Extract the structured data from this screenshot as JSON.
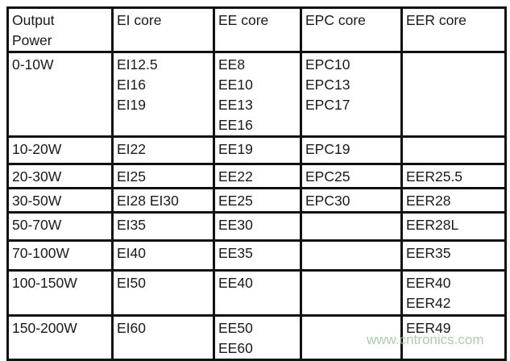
{
  "table": {
    "headers": [
      [
        "Output",
        "Power"
      ],
      [
        "EI core"
      ],
      [
        "EE core"
      ],
      [
        "EPC core"
      ],
      [
        "EER core"
      ]
    ],
    "rows": [
      [
        [
          "0-10W"
        ],
        [
          "EI12.5",
          "EI16",
          "EI19"
        ],
        [
          "EE8",
          "EE10",
          "EE13",
          "EE16"
        ],
        [
          "EPC10",
          "EPC13",
          "EPC17"
        ],
        []
      ],
      [
        [
          "10-20W"
        ],
        [
          "EI22"
        ],
        [
          "EE19"
        ],
        [
          "EPC19"
        ],
        []
      ],
      [
        [
          "20-30W"
        ],
        [
          "EI25"
        ],
        [
          "EE22"
        ],
        [
          "EPC25"
        ],
        [
          "EER25.5"
        ]
      ],
      [
        [
          "30-50W"
        ],
        [
          "EI28 EI30"
        ],
        [
          "EE25"
        ],
        [
          "EPC30"
        ],
        [
          "EER28"
        ]
      ],
      [
        [
          "50-70W"
        ],
        [
          "EI35"
        ],
        [
          "EE30"
        ],
        [],
        [
          "EER28L"
        ]
      ],
      [
        [
          "70-100W"
        ],
        [
          "EI40"
        ],
        [
          "EE35"
        ],
        [],
        [
          "EER35"
        ]
      ],
      [
        [
          "100-150W"
        ],
        [
          "EI50"
        ],
        [
          "EE40"
        ],
        [],
        [
          "EER40",
          "EER42"
        ]
      ],
      [
        [
          "150-200W"
        ],
        [
          "EI60"
        ],
        [
          "EE50",
          "EE60"
        ],
        [],
        [
          "EER49"
        ]
      ]
    ]
  },
  "watermark": "www.cntronics.com"
}
